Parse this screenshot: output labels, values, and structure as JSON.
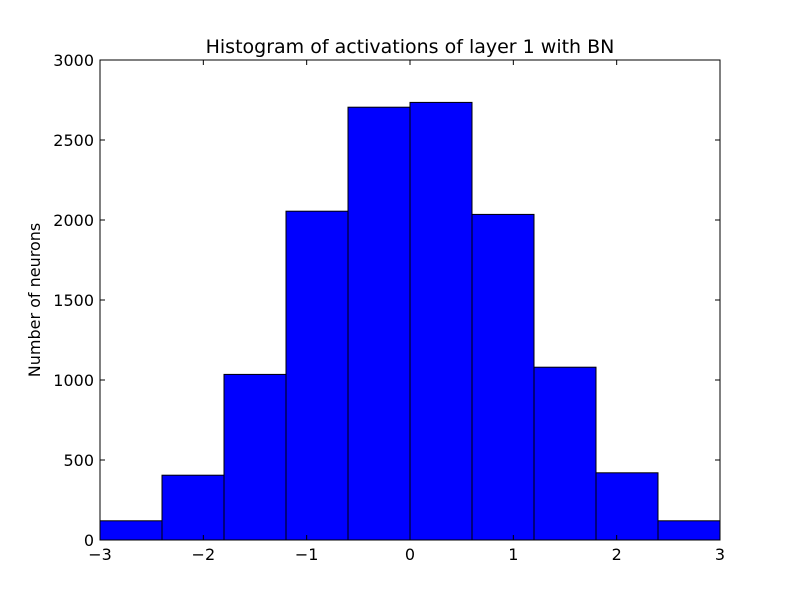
{
  "chart_data": {
    "type": "bar",
    "title": "Histogram of activations of layer 1  with BN",
    "xlabel": "",
    "ylabel": "Number of neurons",
    "bin_edges": [
      -3,
      -2.4,
      -1.8,
      -1.2,
      -0.6,
      0,
      0.6,
      1.2,
      1.8,
      2.4,
      3
    ],
    "values": [
      120,
      405,
      1035,
      2055,
      2705,
      2735,
      2035,
      1080,
      420,
      120
    ],
    "xlim": [
      -3,
      3
    ],
    "ylim": [
      0,
      3000
    ],
    "xticks": [
      -3,
      -2,
      -1,
      0,
      1,
      2,
      3
    ],
    "xtick_labels": [
      "−3",
      "−2",
      "−1",
      "0",
      "1",
      "2",
      "3"
    ],
    "yticks": [
      0,
      500,
      1000,
      1500,
      2000,
      2500,
      3000
    ],
    "ytick_labels": [
      "0",
      "500",
      "1000",
      "1500",
      "2000",
      "2500",
      "3000"
    ],
    "bar_color": "#0000ff",
    "edge_color": "#000000",
    "grid": false,
    "legend": "none"
  }
}
